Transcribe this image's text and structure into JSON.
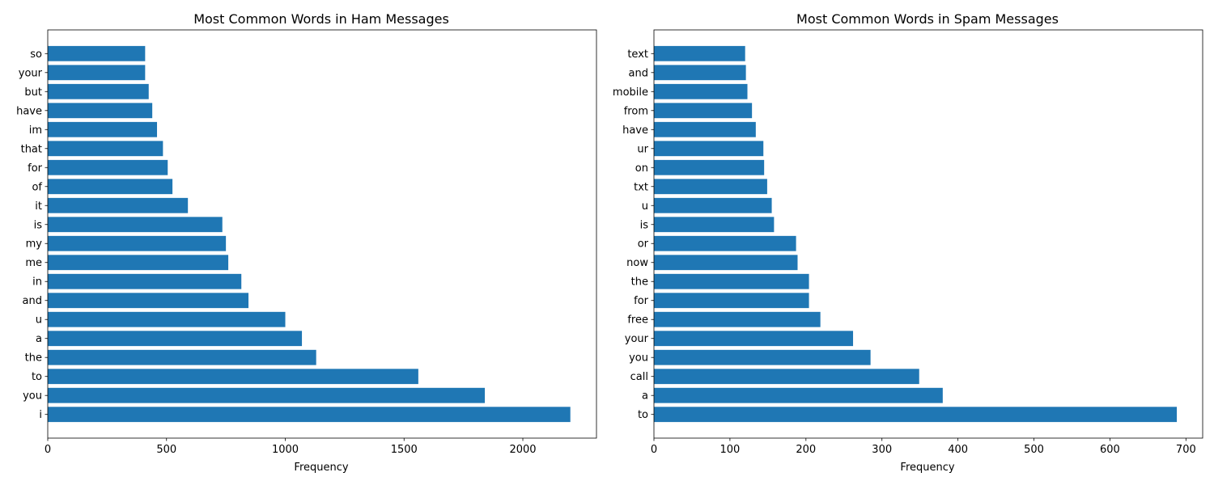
{
  "chart_data": [
    {
      "type": "bar",
      "orientation": "horizontal",
      "title": "Most Common Words in Ham Messages",
      "xlabel": "Frequency",
      "ylabel": "",
      "xlim": [
        0,
        2310
      ],
      "xticks": [
        0,
        500,
        1000,
        1500,
        2000
      ],
      "grid": false,
      "bar_color": "#1f77b4",
      "categories": [
        "i",
        "you",
        "to",
        "the",
        "a",
        "u",
        "and",
        "in",
        "me",
        "my",
        "is",
        "it",
        "of",
        "for",
        "that",
        "im",
        "have",
        "but",
        "your",
        "so"
      ],
      "values": [
        2200,
        1840,
        1560,
        1130,
        1070,
        1000,
        845,
        815,
        760,
        750,
        735,
        590,
        525,
        505,
        485,
        460,
        440,
        425,
        410,
        410
      ]
    },
    {
      "type": "bar",
      "orientation": "horizontal",
      "title": "Most Common Words in Spam Messages",
      "xlabel": "Frequency",
      "ylabel": "",
      "xlim": [
        0,
        722
      ],
      "xticks": [
        0,
        100,
        200,
        300,
        400,
        500,
        600,
        700
      ],
      "grid": false,
      "bar_color": "#1f77b4",
      "categories": [
        "to",
        "a",
        "call",
        "you",
        "your",
        "free",
        "for",
        "the",
        "now",
        "or",
        "is",
        "u",
        "txt",
        "on",
        "ur",
        "have",
        "from",
        "mobile",
        "and",
        "text"
      ],
      "values": [
        688,
        380,
        349,
        285,
        262,
        219,
        204,
        204,
        189,
        187,
        158,
        155,
        149,
        145,
        144,
        134,
        129,
        123,
        121,
        120
      ]
    }
  ]
}
